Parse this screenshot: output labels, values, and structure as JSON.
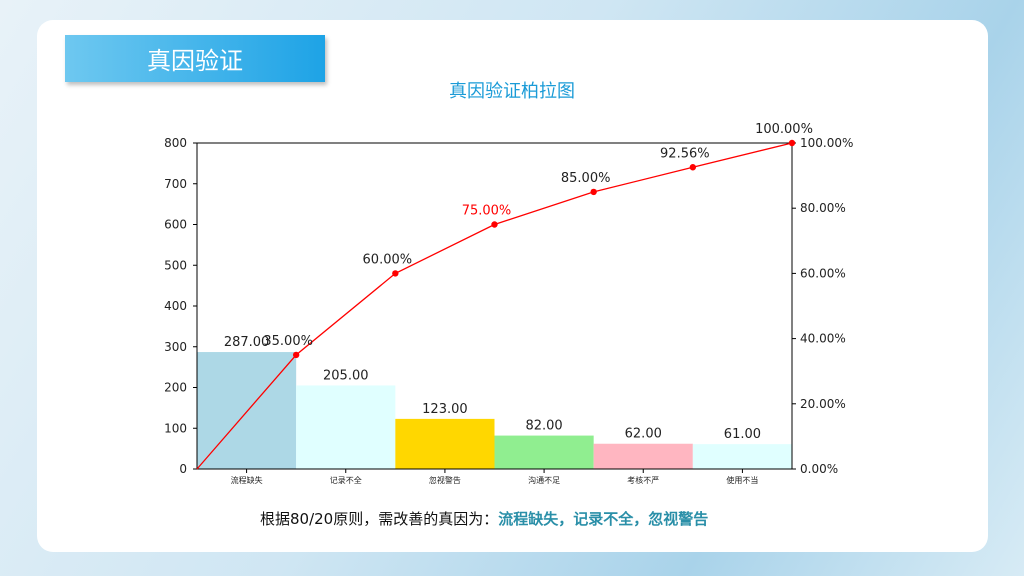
{
  "header": {
    "title": "真因验证"
  },
  "chart_data": {
    "type": "bar",
    "title": "真因验证柏拉图",
    "categories": [
      "流程缺失",
      "记录不全",
      "忽视警告",
      "沟通不足",
      "考核不严",
      "使用不当"
    ],
    "values": [
      287,
      205,
      123,
      82,
      62,
      61
    ],
    "value_labels": [
      "287.00",
      "205.00",
      "123.00",
      "82.00",
      "62.00",
      "61.00"
    ],
    "bar_colors": [
      "#add8e6",
      "#e0ffff",
      "#ffd700",
      "#90ee90",
      "#ffb6c1",
      "#e0ffff"
    ],
    "cumulative_percent": [
      0,
      35,
      60,
      75,
      85,
      92.56,
      100
    ],
    "cumulative_labels": [
      "35.00%",
      "60.00%",
      "75.00%",
      "85.00%",
      "92.56%",
      "100.00%"
    ],
    "highlight_label_index": 2,
    "line_color": "#ff0000",
    "ylim": [
      0,
      800
    ],
    "yticks": [
      "0",
      "100",
      "200",
      "300",
      "400",
      "500",
      "600",
      "700",
      "800"
    ],
    "y2ticks": [
      "0.00%",
      "20.00%",
      "40.00%",
      "60.00%",
      "80.00%",
      "100.00%"
    ],
    "y2lim": [
      0,
      100
    ]
  },
  "conclusion": {
    "prefix": "根据80/20原则，需改善的真因为：",
    "highlight": "流程缺失，记录不全，忽视警告"
  }
}
